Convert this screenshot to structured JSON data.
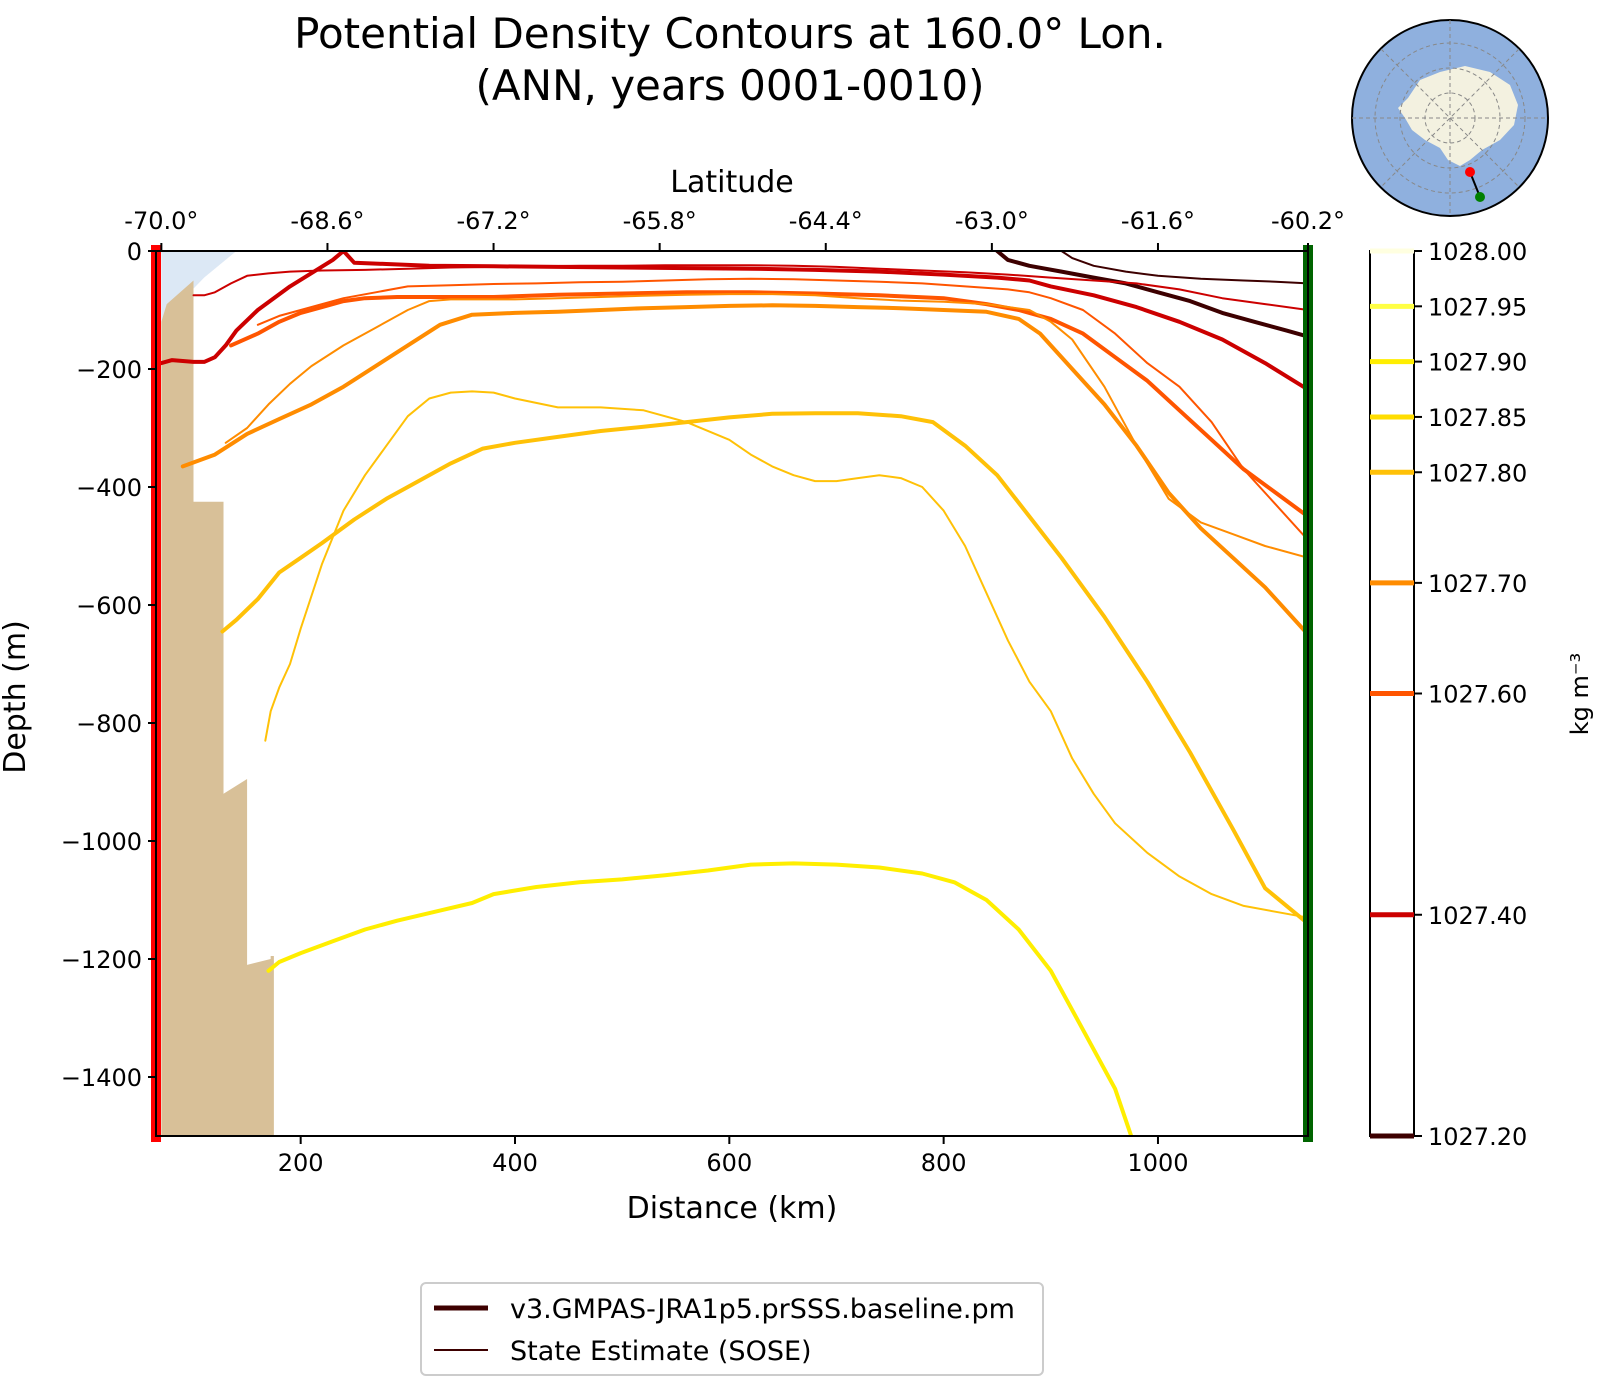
{
  "chart_data": {
    "type": "line",
    "title": [
      "Potential Density Contours at 160.0° Lon.",
      "(ANN, years 0001-0010)"
    ],
    "xlabel": "Distance (km)",
    "x2label": "Latitude",
    "ylabel": "Depth (m)",
    "xlim": [
      65,
      1140
    ],
    "ylim": [
      -1500,
      0
    ],
    "xticks": [
      200,
      400,
      600,
      800,
      1000
    ],
    "xtick_labels": [
      "200",
      "400",
      "600",
      "800",
      "1000"
    ],
    "yticks": [
      0,
      -200,
      -400,
      -600,
      -800,
      -1000,
      -1200,
      -1400
    ],
    "ytick_labels": [
      "0",
      "−200",
      "−400",
      "−600",
      "−800",
      "−1000",
      "−1200",
      "−1400"
    ],
    "lat_ticks": [
      70,
      225,
      380,
      535,
      690,
      845,
      1000,
      1155
    ],
    "lat_tick_labels": [
      "-70.0°",
      "-68.6°",
      "-67.2°",
      "-65.8°",
      "-64.4°",
      "-63.0°",
      "-61.6°",
      "-60.2°"
    ],
    "colorbar": {
      "label": "kg m⁻³",
      "levels": [
        1028.0,
        1027.95,
        1027.9,
        1027.85,
        1027.8,
        1027.7,
        1027.6,
        1027.4,
        1027.2
      ],
      "tick_labels": [
        "1028.00",
        "1027.95",
        "1027.90",
        "1027.85",
        "1027.80",
        "1027.70",
        "1027.60",
        "1027.40",
        "1027.20"
      ],
      "colors": [
        "#ffffe0",
        "#ffff44",
        "#ffee00",
        "#ffdd00",
        "#ffc107",
        "#ff8c00",
        "#ff5500",
        "#cc0000",
        "#3d0000"
      ]
    },
    "legend": [
      "v3.GMPAS-JRA1p5.prSSS.baseline.pm",
      "State Estimate (SOSE)"
    ],
    "legend_placement": "bottom-center",
    "bathymetry": {
      "color": "#d8c098",
      "x": [
        70,
        70,
        75,
        100,
        100,
        128,
        128,
        150,
        150,
        172,
        172,
        175,
        175
      ],
      "y": [
        -1500,
        -120,
        -90,
        -50,
        -425,
        -425,
        -920,
        -895,
        -1210,
        -1200,
        -1195,
        -1195,
        -1500
      ]
    },
    "ice_shelf": {
      "color": "#dce8f5",
      "x": [
        70,
        140,
        110,
        70
      ],
      "y": [
        0,
        0,
        -45,
        -120
      ]
    },
    "series": [
      {
        "name": "v3.GMPAS-JRA1p5.prSSS.baseline.pm",
        "level": 1027.95,
        "color": "#ffee00",
        "width": 4,
        "x": [
          170,
          180,
          200,
          230,
          260,
          290,
          330,
          360,
          380,
          420,
          460,
          500,
          540,
          580,
          620,
          660,
          700,
          740,
          780,
          810,
          840,
          870,
          900,
          930,
          960,
          975
        ],
        "y": [
          -1220,
          -1205,
          -1190,
          -1170,
          -1150,
          -1135,
          -1118,
          -1105,
          -1090,
          -1078,
          -1070,
          -1065,
          -1058,
          -1050,
          -1040,
          -1038,
          -1040,
          -1045,
          -1055,
          -1070,
          -1100,
          -1150,
          -1220,
          -1320,
          -1420,
          -1500
        ]
      },
      {
        "name": "v3.GMPAS-JRA1p5.prSSS.baseline.pm",
        "level": 1027.85,
        "color": "#ffc107",
        "width": 4,
        "x": [
          127,
          140,
          160,
          180,
          200,
          220,
          250,
          280,
          310,
          340,
          370,
          400,
          440,
          480,
          520,
          560,
          600,
          640,
          680,
          720,
          760,
          790,
          820,
          850,
          880,
          910,
          950,
          990,
          1030,
          1070,
          1100,
          1140
        ],
        "y": [
          -645,
          -625,
          -590,
          -545,
          -520,
          -495,
          -455,
          -420,
          -390,
          -360,
          -335,
          -325,
          -315,
          -305,
          -298,
          -290,
          -282,
          -276,
          -275,
          -275,
          -280,
          -290,
          -330,
          -380,
          -450,
          -520,
          -620,
          -730,
          -850,
          -980,
          -1080,
          -1140
        ]
      },
      {
        "name": "v3.GMPAS-JRA1p5.prSSS.baseline.pm",
        "level": 1027.7,
        "color": "#ff8c00",
        "width": 4,
        "x": [
          90,
          120,
          150,
          180,
          210,
          240,
          270,
          300,
          330,
          360,
          400,
          440,
          480,
          520,
          560,
          600,
          640,
          680,
          720,
          760,
          800,
          840,
          870,
          890,
          920,
          950,
          980,
          1010,
          1040,
          1070,
          1100,
          1140
        ],
        "y": [
          -365,
          -345,
          -310,
          -285,
          -260,
          -230,
          -195,
          -160,
          -125,
          -108,
          -105,
          -103,
          -100,
          -97,
          -95,
          -93,
          -92,
          -93,
          -95,
          -97,
          -100,
          -103,
          -115,
          -140,
          -200,
          -260,
          -330,
          -410,
          -470,
          -520,
          -570,
          -650
        ]
      },
      {
        "name": "v3.GMPAS-JRA1p5.prSSS.baseline.pm",
        "level": 1027.6,
        "color": "#ff5500",
        "width": 4,
        "x": [
          135,
          160,
          180,
          200,
          220,
          240,
          260,
          290,
          330,
          380,
          440,
          500,
          560,
          620,
          680,
          740,
          800,
          840,
          870,
          900,
          930,
          960,
          990,
          1020,
          1050,
          1080,
          1110,
          1140
        ],
        "y": [
          -160,
          -140,
          -120,
          -105,
          -95,
          -85,
          -80,
          -78,
          -78,
          -78,
          -74,
          -72,
          -70,
          -70,
          -72,
          -75,
          -80,
          -90,
          -100,
          -115,
          -140,
          -180,
          -220,
          -270,
          -320,
          -370,
          -410,
          -450
        ]
      },
      {
        "name": "v3.GMPAS-JRA1p5.prSSS.baseline.pm",
        "level": 1027.4,
        "color": "#cc0000",
        "width": 4,
        "x": [
          70,
          80,
          100,
          110,
          120,
          130,
          140,
          160,
          190,
          230,
          240,
          250,
          280,
          320,
          380,
          440,
          500,
          560,
          620,
          680,
          740,
          800,
          850,
          880,
          900,
          940,
          980,
          1020,
          1060,
          1100,
          1140
        ],
        "y": [
          -190,
          -185,
          -188,
          -188,
          -180,
          -160,
          -135,
          -100,
          -60,
          -15,
          0,
          -20,
          -22,
          -25,
          -26,
          -27,
          -28,
          -29,
          -30,
          -32,
          -35,
          -40,
          -45,
          -50,
          -60,
          -75,
          -95,
          -120,
          -150,
          -190,
          -235
        ]
      },
      {
        "name": "v3.GMPAS-JRA1p5.prSSS.baseline.pm",
        "level": 1027.2,
        "color": "#3d0000",
        "width": 4,
        "x": [
          850,
          860,
          880,
          910,
          940,
          970,
          1000,
          1030,
          1060,
          1090,
          1120,
          1140
        ],
        "y": [
          0,
          -15,
          -25,
          -35,
          -45,
          -55,
          -70,
          -85,
          -105,
          -120,
          -135,
          -145
        ]
      },
      {
        "name": "State Estimate (SOSE)",
        "level": 1027.9,
        "color": "#ffc107",
        "width": 2,
        "x": [
          167,
          172,
          180,
          190,
          200,
          220,
          240,
          260,
          280,
          300,
          320,
          340,
          360,
          380,
          400,
          440,
          480,
          520,
          560,
          600,
          620,
          640,
          660,
          680,
          700,
          720,
          740,
          760,
          780,
          800,
          820,
          840,
          860,
          880,
          900,
          920,
          940,
          960,
          990,
          1020,
          1050,
          1080,
          1110,
          1140
        ],
        "y": [
          -830,
          -780,
          -740,
          -700,
          -640,
          -530,
          -440,
          -380,
          -330,
          -280,
          -250,
          -240,
          -238,
          -240,
          -250,
          -265,
          -265,
          -270,
          -290,
          -320,
          -345,
          -365,
          -380,
          -390,
          -390,
          -385,
          -380,
          -385,
          -400,
          -440,
          -500,
          -580,
          -660,
          -730,
          -780,
          -860,
          -920,
          -970,
          -1020,
          -1060,
          -1090,
          -1110,
          -1120,
          -1130
        ]
      },
      {
        "name": "State Estimate (SOSE)",
        "level": 1027.7,
        "color": "#ff8c00",
        "width": 2,
        "x": [
          130,
          150,
          170,
          190,
          210,
          240,
          270,
          300,
          320,
          340,
          370,
          400,
          440,
          480,
          520,
          560,
          600,
          640,
          680,
          720,
          760,
          800,
          840,
          880,
          900,
          920,
          950,
          980,
          1010,
          1040,
          1070,
          1100,
          1140
        ],
        "y": [
          -325,
          -300,
          -260,
          -225,
          -195,
          -160,
          -130,
          -100,
          -85,
          -82,
          -82,
          -82,
          -80,
          -78,
          -76,
          -74,
          -73,
          -73,
          -75,
          -80,
          -84,
          -86,
          -90,
          -100,
          -120,
          -150,
          -230,
          -330,
          -420,
          -460,
          -480,
          -500,
          -520
        ]
      },
      {
        "name": "State Estimate (SOSE)",
        "level": 1027.6,
        "color": "#ff5500",
        "width": 2,
        "x": [
          160,
          180,
          200,
          220,
          240,
          270,
          300,
          340,
          380,
          420,
          460,
          500,
          540,
          580,
          620,
          660,
          700,
          740,
          780,
          820,
          860,
          880,
          900,
          930,
          960,
          990,
          1020,
          1050,
          1080,
          1110,
          1140
        ],
        "y": [
          -125,
          -110,
          -100,
          -90,
          -80,
          -70,
          -60,
          -58,
          -56,
          -55,
          -53,
          -52,
          -50,
          -48,
          -47,
          -48,
          -50,
          -52,
          -55,
          -60,
          -65,
          -70,
          -80,
          -100,
          -140,
          -190,
          -230,
          -290,
          -370,
          -430,
          -490
        ]
      },
      {
        "name": "State Estimate (SOSE)",
        "level": 1027.4,
        "color": "#cc0000",
        "width": 2,
        "x": [
          100,
          110,
          120,
          135,
          150,
          170,
          190,
          220,
          260,
          300,
          340,
          380,
          420,
          460,
          500,
          540,
          580,
          620,
          660,
          700,
          740,
          780,
          820,
          860,
          900,
          940,
          980,
          1020,
          1060,
          1100,
          1140
        ],
        "y": [
          -75,
          -75,
          -70,
          -55,
          -42,
          -38,
          -35,
          -33,
          -32,
          -30,
          -28,
          -27,
          -26,
          -25,
          -25,
          -24,
          -24,
          -24,
          -25,
          -27,
          -30,
          -33,
          -36,
          -40,
          -45,
          -50,
          -55,
          -65,
          -80,
          -90,
          -100
        ]
      },
      {
        "name": "State Estimate (SOSE)",
        "level": 1027.2,
        "color": "#3d0000",
        "width": 2,
        "x": [
          910,
          920,
          940,
          970,
          1000,
          1040,
          1080,
          1110,
          1140
        ],
        "y": [
          0,
          -12,
          -25,
          -35,
          -42,
          -47,
          -50,
          -52,
          -55
        ]
      }
    ]
  },
  "inset_map": {
    "ocean_color": "#8fb0de",
    "land_color": "#f3f1e0",
    "start_marker_color": "#ff0000",
    "end_marker_color": "#008000"
  },
  "section_markers": {
    "left_color": "#ff0000",
    "right_color": "#006400"
  }
}
